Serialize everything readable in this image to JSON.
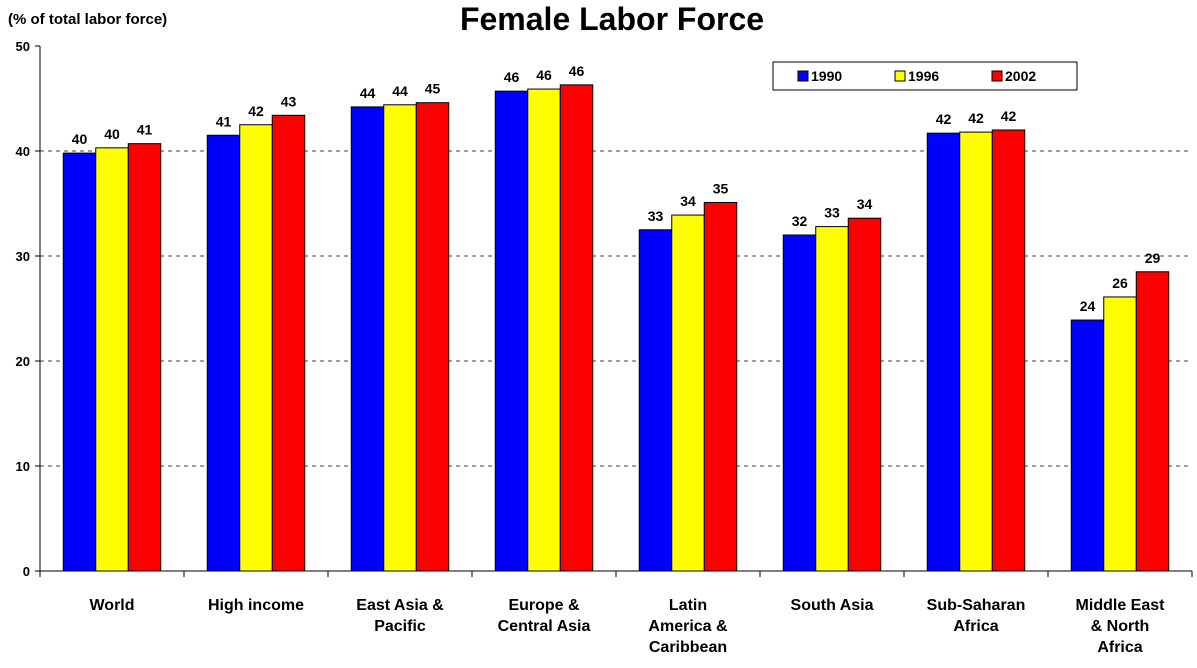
{
  "chart_data": {
    "type": "bar",
    "title": "Female Labor Force",
    "y_label": "(% of total labor force)",
    "categories": [
      "World",
      "High income",
      "East Asia &\nPacific",
      "Europe &\nCentral Asia",
      "Latin\nAmerica &\nCaribbean",
      "South Asia",
      "Sub-Saharan\nAfrica",
      "Middle East\n& North\nAfrica"
    ],
    "series": [
      {
        "name": "1990",
        "color": "#0000ff",
        "values": [
          39.8,
          41.5,
          44.2,
          45.7,
          32.5,
          32.0,
          41.7,
          23.9
        ],
        "value_labels": [
          "40",
          "41",
          "44",
          "46",
          "33",
          "32",
          "42",
          "24"
        ]
      },
      {
        "name": "1996",
        "color": "#ffff00",
        "values": [
          40.3,
          42.5,
          44.4,
          45.9,
          33.9,
          32.8,
          41.8,
          26.1
        ],
        "value_labels": [
          "40",
          "42",
          "44",
          "46",
          "34",
          "33",
          "42",
          "26"
        ]
      },
      {
        "name": "2002",
        "color": "#ff0000",
        "values": [
          40.7,
          43.4,
          44.6,
          46.3,
          35.1,
          33.6,
          42.0,
          28.5
        ],
        "value_labels": [
          "41",
          "43",
          "45",
          "46",
          "35",
          "34",
          "42",
          "29"
        ]
      }
    ],
    "ylim": [
      0,
      50
    ],
    "yticks": [
      0,
      10,
      20,
      30,
      40,
      50
    ],
    "grid": true,
    "legend": "top-right"
  }
}
